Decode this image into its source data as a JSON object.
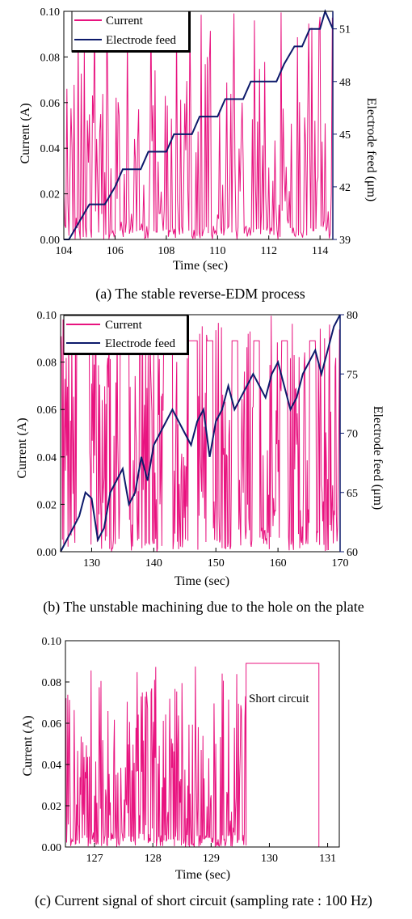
{
  "colors": {
    "current": "#e8137f",
    "feed": "#0d1a6b",
    "axis": "#000000",
    "right_axis": "#0d1a6b"
  },
  "chart_data": [
    {
      "type": "line",
      "caption": "(a) The stable reverse-EDM process",
      "xlabel": "Time (sec)",
      "ylabel": "Current (A)",
      "y2label": "Electrode feed (μm)",
      "xlim": [
        104,
        114.5
      ],
      "ylim": [
        0,
        0.1
      ],
      "y2lim": [
        39,
        52
      ],
      "xticks": [
        104,
        106,
        108,
        110,
        112,
        114
      ],
      "yticks": [
        "0.00",
        "0.02",
        "0.04",
        "0.06",
        "0.08",
        "0.10"
      ],
      "y2ticks": [
        39,
        42,
        45,
        48,
        51
      ],
      "legend": {
        "position": "top-left",
        "entries": [
          "Current",
          "Electrode feed"
        ]
      },
      "current": {
        "name": "Current",
        "seed": 11,
        "tmin": 104,
        "tmax": 114.5,
        "rate": 25,
        "base": 0.003,
        "spike_prob": 0.6,
        "max": 0.1
      },
      "series": [
        {
          "name": "Electrode feed",
          "x": [
            104.0,
            104.2,
            105.0,
            105.3,
            105.6,
            106.0,
            106.3,
            106.6,
            107.0,
            107.3,
            107.6,
            108.0,
            108.3,
            108.6,
            109.0,
            109.3,
            109.6,
            110.0,
            110.3,
            110.6,
            111.0,
            111.3,
            111.6,
            112.0,
            112.3,
            112.6,
            113.0,
            113.3,
            113.6,
            114.0,
            114.2,
            114.5
          ],
          "y": [
            39.0,
            39.0,
            41.0,
            41.0,
            41.0,
            42.0,
            43.0,
            43.0,
            43.0,
            44.0,
            44.0,
            44.0,
            45.0,
            45.0,
            45.0,
            46.0,
            46.0,
            46.0,
            47.0,
            47.0,
            47.0,
            48.0,
            48.0,
            48.0,
            48.0,
            49.0,
            50.0,
            50.0,
            51.0,
            51.0,
            52.0,
            51.0
          ]
        }
      ]
    },
    {
      "type": "line",
      "caption": "(b) The unstable machining due to the hole on the plate",
      "xlabel": "Time (sec)",
      "ylabel": "Current (A)",
      "y2label": "Electrode feed (μm)",
      "xlim": [
        125,
        170
      ],
      "ylim": [
        0,
        0.1
      ],
      "y2lim": [
        60,
        80
      ],
      "xticks": [
        130,
        140,
        150,
        160,
        170
      ],
      "yticks": [
        "0.00",
        "0.02",
        "0.04",
        "0.06",
        "0.08",
        "0.10"
      ],
      "y2ticks": [
        60,
        65,
        70,
        75,
        80
      ],
      "legend": {
        "position": "top-left",
        "entries": [
          "Current",
          "Electrode feed"
        ]
      },
      "current": {
        "name": "Current",
        "seed": 7,
        "tmin": 125,
        "tmax": 170,
        "rate": 10,
        "base": 0.003,
        "spike_prob": 0.8,
        "max": 0.1,
        "plateaus": [
          [
            127.5,
            129.5,
            0.089
          ],
          [
            134.5,
            136.0,
            0.089
          ],
          [
            141.5,
            143.0,
            0.089
          ],
          [
            145.5,
            147.0,
            0.089
          ],
          [
            148.5,
            149.5,
            0.089
          ],
          [
            152.5,
            153.5,
            0.089
          ],
          [
            156.0,
            157.0,
            0.089
          ],
          [
            160.5,
            161.5,
            0.089
          ],
          [
            165.0,
            166.0,
            0.089
          ]
        ]
      },
      "series": [
        {
          "name": "Electrode feed",
          "x": [
            125.0,
            126.0,
            127.0,
            128.0,
            129.0,
            130.0,
            131.0,
            132.0,
            133.0,
            134.0,
            135.0,
            136.0,
            137.0,
            138.0,
            139.0,
            140.0,
            141.0,
            142.0,
            143.0,
            144.0,
            145.0,
            146.0,
            147.0,
            148.0,
            149.0,
            150.0,
            151.0,
            152.0,
            153.0,
            154.0,
            155.0,
            156.0,
            157.0,
            158.0,
            159.0,
            160.0,
            161.0,
            162.0,
            163.0,
            164.0,
            165.0,
            166.0,
            167.0,
            168.0,
            169.0,
            170.0
          ],
          "y": [
            60.0,
            61.0,
            62.0,
            63.0,
            65.0,
            64.5,
            61.0,
            62.0,
            65.0,
            66.0,
            67.0,
            64.0,
            65.0,
            68.0,
            66.0,
            69.0,
            70.0,
            71.0,
            72.0,
            71.0,
            70.0,
            69.0,
            71.0,
            72.0,
            68.0,
            71.0,
            72.0,
            74.0,
            72.0,
            73.0,
            74.0,
            75.0,
            74.0,
            73.0,
            75.0,
            76.0,
            74.0,
            72.0,
            73.0,
            75.0,
            76.0,
            77.0,
            75.0,
            77.0,
            79.0,
            80.0
          ]
        }
      ]
    },
    {
      "type": "line",
      "caption": "(c) Current signal of short circuit (sampling rate : 100 Hz)",
      "xlabel": "Time (sec)",
      "ylabel": "Current (A)",
      "xlim": [
        126.5,
        131.2
      ],
      "ylim": [
        0,
        0.1
      ],
      "xticks": [
        127,
        128,
        129,
        130,
        131
      ],
      "yticks": [
        "0.00",
        "0.02",
        "0.04",
        "0.06",
        "0.08",
        "0.10"
      ],
      "annotation": "Short circuit",
      "current": {
        "name": "Current",
        "seed": 5,
        "tmin": 126.5,
        "tmax": 129.6,
        "rate": 100,
        "base": 0.003,
        "spike_prob": 0.55,
        "max": 0.088,
        "plateau": {
          "start": 129.6,
          "end": 130.85,
          "value": 0.089
        },
        "after": {
          "start": 130.85,
          "end": 131.2,
          "value": 0.0
        }
      }
    }
  ]
}
